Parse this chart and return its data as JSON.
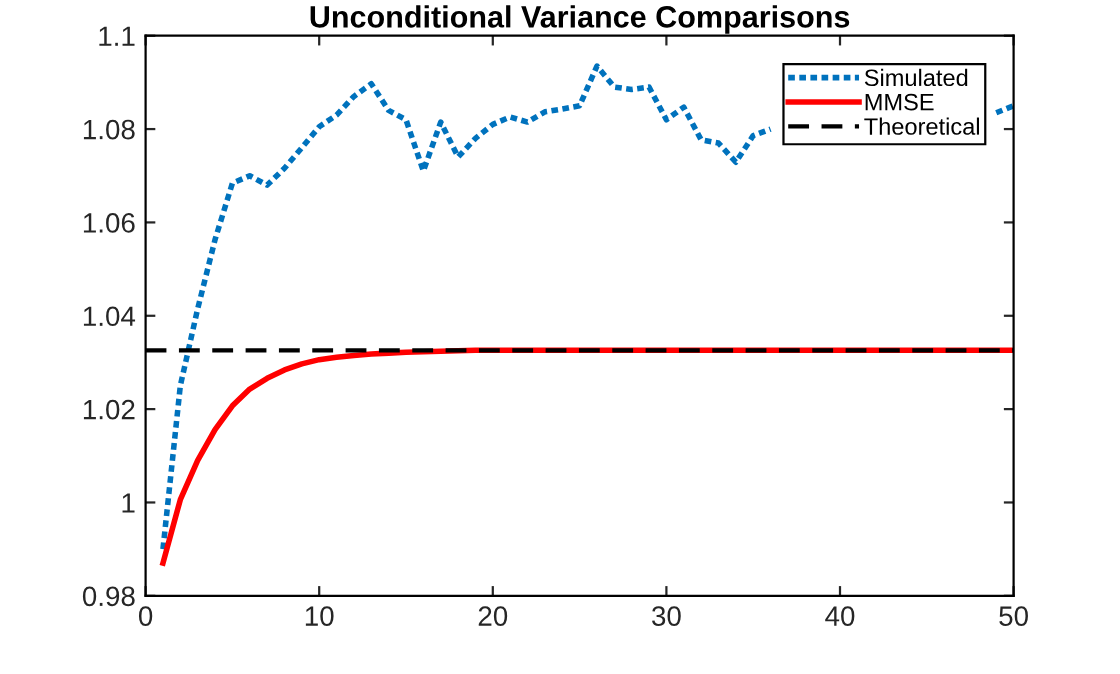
{
  "chart_data": {
    "type": "line",
    "title": "Unconditional Variance Comparisons",
    "x": [
      1,
      2,
      3,
      4,
      5,
      6,
      7,
      8,
      9,
      10,
      11,
      12,
      13,
      14,
      15,
      16,
      17,
      18,
      19,
      20,
      21,
      22,
      23,
      24,
      25,
      26,
      27,
      28,
      29,
      30,
      31,
      32,
      33,
      34,
      35,
      36,
      37,
      38,
      39,
      40,
      41,
      42,
      43,
      44,
      45,
      46,
      47,
      48,
      49,
      50
    ],
    "series": [
      {
        "name": "Simulated",
        "color": "#0072bd",
        "line_style": "dotted",
        "values": [
          0.99,
          1.025,
          1.0415,
          1.0563,
          1.0684,
          1.07,
          1.068,
          1.0716,
          1.076,
          1.0805,
          1.083,
          1.087,
          1.0897,
          1.084,
          1.082,
          1.071,
          1.0815,
          1.074,
          1.078,
          1.081,
          1.0826,
          1.0815,
          1.0837,
          1.0843,
          1.085,
          1.0935,
          1.089,
          1.0885,
          1.089,
          1.082,
          1.0847,
          1.0777,
          1.077,
          1.0729,
          1.0786,
          1.08,
          null,
          null,
          null,
          null,
          null,
          null,
          null,
          null,
          null,
          null,
          null,
          null,
          1.0835,
          1.085
        ]
      },
      {
        "name": "MMSE",
        "color": "#ff0000",
        "line_style": "solid",
        "values": [
          0.987,
          1.0006,
          1.009,
          1.0156,
          1.0207,
          1.0243,
          1.0266,
          1.0284,
          1.0297,
          1.0306,
          1.0311,
          1.0315,
          1.0318,
          1.032,
          1.0322,
          1.0323,
          1.0324,
          1.0325,
          1.0326,
          1.0326,
          1.0326,
          1.0326,
          1.0326,
          1.0326,
          1.0326,
          1.0326,
          1.0326,
          1.0326,
          1.0326,
          1.0326,
          1.0326,
          1.0326,
          1.0326,
          1.0326,
          1.0326,
          1.0326,
          1.0326,
          1.0326,
          1.0326,
          1.0326,
          1.0326,
          1.0326,
          1.0326,
          1.0326,
          1.0326,
          1.0326,
          1.0326,
          1.0326,
          1.0326,
          1.0326
        ]
      }
    ],
    "ref_lines": [
      {
        "axis": "y",
        "value": 1.0326,
        "label": "Theoretical",
        "color": "#000000",
        "line_style": "dashed"
      }
    ],
    "xlim": [
      0,
      50
    ],
    "xticks": [
      0,
      10,
      20,
      30,
      40,
      50
    ],
    "ylim": [
      0.98,
      1.1
    ],
    "yticks": [
      0.98,
      1,
      1.02,
      1.04,
      1.06,
      1.08,
      1.1
    ],
    "grid": false,
    "legend": "top right",
    "marker": "none"
  }
}
